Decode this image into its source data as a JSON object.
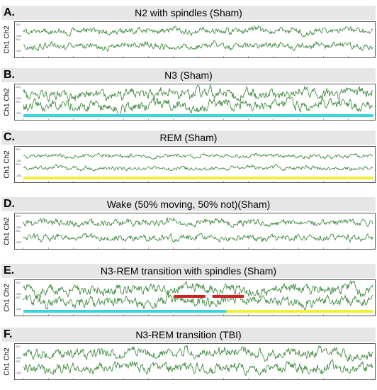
{
  "colors": {
    "signal": "#2e7d2e",
    "nrem_bar": "#3cd4dc",
    "rem_bar": "#f2ef3a",
    "spindle_marker": "#cc2222",
    "header_bg": "#e6e6e6"
  },
  "chart_data": [
    {
      "type": "line",
      "letter": "A.",
      "title": "N2 with spindles (Sham)",
      "ylabel": "Ch1 Ch2",
      "channel_scale": [
        "250",
        "-250",
        "250",
        "-250"
      ],
      "stage_bar": "none",
      "spindles": false,
      "amplitude": "medium",
      "density": 1.0
    },
    {
      "type": "line",
      "letter": "B.",
      "title": "N3 (Sham)",
      "ylabel": "Ch1 Ch2",
      "channel_scale": [
        "250",
        "-250",
        "250",
        "-250"
      ],
      "stage_bar": "nrem",
      "spindles": false,
      "amplitude": "high",
      "density": 1.0
    },
    {
      "type": "line",
      "letter": "C.",
      "title": "REM (Sham)",
      "ylabel": "Ch1 Ch2",
      "channel_scale": [
        "250",
        "-250",
        "250",
        "-250"
      ],
      "stage_bar": "rem",
      "spindles": false,
      "amplitude": "low",
      "density": 1.0
    },
    {
      "type": "line",
      "letter": "D.",
      "title": "Wake (50% moving, 50% not)(Sham)",
      "ylabel": "Ch1 Ch2",
      "channel_scale": [
        "250",
        "-250",
        "250",
        "-250"
      ],
      "stage_bar": "none",
      "spindles": false,
      "amplitude": "medium",
      "density": 1.0
    },
    {
      "type": "line",
      "letter": "E.",
      "title": "N3-REM transition with spindles (Sham)",
      "ylabel": "Ch1 Ch2",
      "channel_scale": [
        "250",
        "-250",
        "250",
        "-250"
      ],
      "stage_bar": "nrem-to-rem",
      "transition": 0.58,
      "spindles": true,
      "amplitude": "high",
      "density": 1.0
    },
    {
      "type": "line",
      "letter": "F.",
      "title": "N3-REM transition (TBI)",
      "ylabel": "Ch1 Ch2",
      "channel_scale": [
        "250",
        "-250",
        "250",
        "-250"
      ],
      "stage_bar": "none",
      "spindles": false,
      "amplitude": "high",
      "density": 1.0
    }
  ]
}
